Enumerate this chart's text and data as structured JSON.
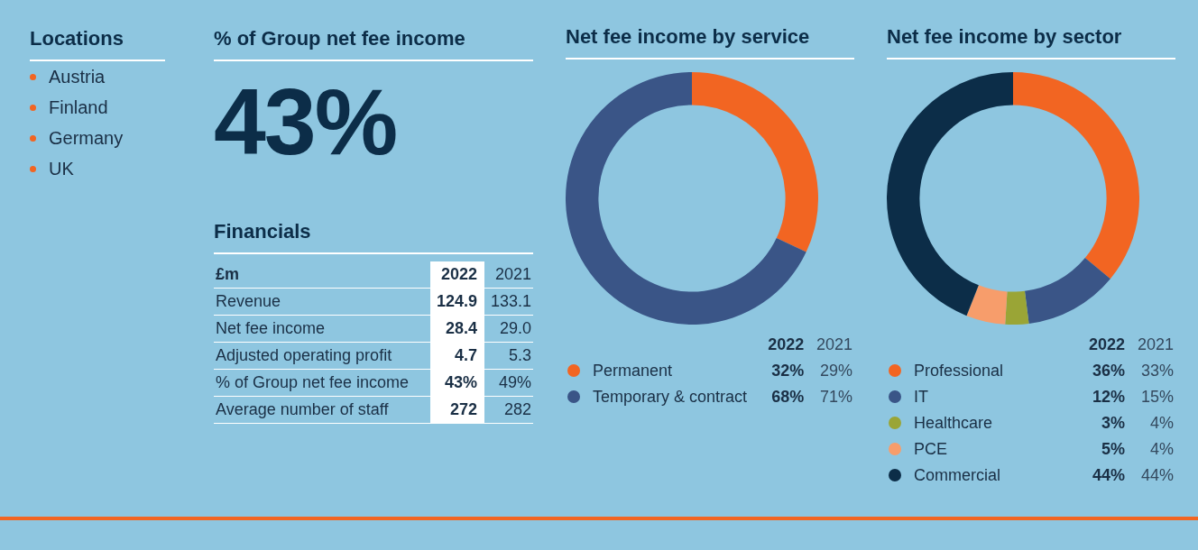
{
  "chart_data": [
    {
      "type": "other",
      "title": "Locations",
      "annotations": [
        "Austria",
        "Finland",
        "Germany",
        "UK"
      ]
    },
    {
      "type": "other",
      "title": "% of Group net fee income",
      "annotations": [
        "43%"
      ]
    },
    {
      "type": "other",
      "title": "Financials",
      "annotations": [
        "£m",
        "2022",
        "2021",
        "Revenue",
        "124.9",
        "133.1",
        "Net fee income",
        "28.4",
        "29.0",
        "Adjusted operating profit",
        "4.7",
        "5.3",
        "% of Group net fee income",
        "43%",
        "49%",
        "Average number of staff",
        "272",
        "282"
      ]
    },
    {
      "type": "donut",
      "title": "Net fee income by service",
      "categories": [
        "Permanent",
        "Temporary & contract"
      ],
      "colors": [
        "#f26522",
        "#3a5587"
      ],
      "legend": "bottom",
      "values": [
        32,
        68
      ],
      "value_labels": [
        "32%",
        "68%"
      ],
      "annotations": [
        "2022",
        "2021",
        "29%",
        "71%"
      ]
    },
    {
      "type": "donut",
      "title": "Net fee income by sector",
      "categories": [
        "Professional",
        "IT",
        "Healthcare",
        "PCE",
        "Commercial"
      ],
      "colors": [
        "#f26522",
        "#3a5587",
        "#9aa536",
        "#f79d6b",
        "#0c2d48"
      ],
      "legend": "bottom",
      "values": [
        36,
        12,
        3,
        5,
        44
      ],
      "value_labels": [
        "36%",
        "12%",
        "3%",
        "5%",
        "44%"
      ],
      "annotations": [
        "2022",
        "2021",
        "33%",
        "15%",
        "4%",
        "4%",
        "44%"
      ]
    }
  ]
}
